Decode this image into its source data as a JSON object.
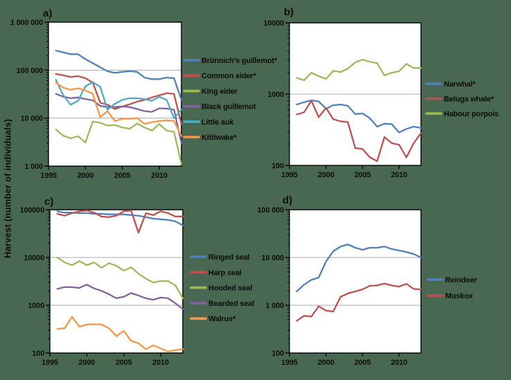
{
  "figure": {
    "y_axis_label": "Harvest (number of individuals)",
    "background_color": "#496851",
    "plot_background": "#FFFFFF",
    "grid_color": "#A8A8A8",
    "axis_color": "#000000"
  },
  "chart_data": [
    {
      "id": "a",
      "panel_label": "a)",
      "type": "line",
      "log_scale": true,
      "ylim": [
        1000,
        1000000
      ],
      "y_tick_labels": [
        "1 000 000",
        "100 000",
        "10 000",
        "1 000"
      ],
      "x_ticks": [
        1995,
        2000,
        2005,
        2010
      ],
      "x_tick_labels": [
        "1995",
        "2000",
        "2005",
        "2010"
      ],
      "x": [
        1996,
        1997,
        1998,
        1999,
        2000,
        2001,
        2002,
        2003,
        2004,
        2005,
        2006,
        2007,
        2008,
        2009,
        2010,
        2011,
        2012,
        2013
      ],
      "series": [
        {
          "name": "Brünnich's guillemot*",
          "color": "#4F81BD",
          "values": [
            255000,
            235000,
            215000,
            215000,
            170000,
            140000,
            115000,
            95000,
            88000,
            92000,
            95000,
            92000,
            70000,
            65000,
            65000,
            70000,
            68000,
            24000
          ]
        },
        {
          "name": "Common eider*",
          "color": "#C0504D",
          "values": [
            83000,
            78000,
            72000,
            75000,
            68000,
            55000,
            21000,
            19000,
            15500,
            17500,
            19500,
            22000,
            24000,
            27000,
            30000,
            33000,
            32000,
            7500
          ]
        },
        {
          "name": "King eider",
          "color": "#9BBB59",
          "values": [
            5800,
            4300,
            3800,
            4200,
            3100,
            8500,
            8000,
            7000,
            7200,
            6400,
            6000,
            7700,
            6400,
            5500,
            7500,
            5500,
            5200,
            1100
          ]
        },
        {
          "name": "Black guillemot",
          "color": "#8064A2",
          "values": [
            32000,
            28000,
            26000,
            27000,
            25000,
            23500,
            18000,
            17000,
            17000,
            17500,
            17000,
            15500,
            14000,
            13500,
            16000,
            15800,
            15000,
            3000
          ]
        },
        {
          "name": "Little auk",
          "color": "#4BACC6",
          "values": [
            63000,
            30000,
            19000,
            23000,
            46000,
            56000,
            45000,
            15000,
            20000,
            24000,
            26000,
            26000,
            25000,
            23000,
            28000,
            24000,
            10000,
            15000
          ]
        },
        {
          "name": "Kittiwake*",
          "color": "#F79646",
          "values": [
            55000,
            43000,
            39000,
            42000,
            38000,
            32000,
            10500,
            14000,
            8700,
            9700,
            9700,
            10000,
            7600,
            8200,
            8700,
            9000,
            8700,
            4200
          ]
        }
      ]
    },
    {
      "id": "b",
      "panel_label": "b)",
      "type": "line",
      "log_scale": true,
      "ylim": [
        100,
        10000
      ],
      "y_tick_labels": [
        "10000",
        "1000",
        "100"
      ],
      "x_ticks": [
        1995,
        2000,
        2005,
        2010
      ],
      "x_tick_labels": [
        "1995",
        "2000",
        "2005",
        "2010"
      ],
      "x": [
        1996,
        1997,
        1998,
        1999,
        2000,
        2001,
        2002,
        2003,
        2004,
        2005,
        2006,
        2007,
        2008,
        2009,
        2010,
        2011,
        2012,
        2013
      ],
      "series": [
        {
          "name": "Narwhal*",
          "color": "#4F81BD",
          "values": [
            715,
            770,
            820,
            790,
            625,
            700,
            715,
            685,
            525,
            535,
            460,
            350,
            385,
            380,
            290,
            325,
            350,
            335
          ]
        },
        {
          "name": "Beluga whale*",
          "color": "#C0504D",
          "values": [
            520,
            555,
            810,
            475,
            640,
            445,
            415,
            405,
            175,
            170,
            130,
            115,
            250,
            205,
            195,
            130,
            205,
            285
          ]
        },
        {
          "name": "Habour porpois",
          "color": "#9BBB59",
          "values": [
            1700,
            1560,
            2000,
            1790,
            1630,
            2130,
            2040,
            2280,
            2790,
            3050,
            2850,
            2720,
            1830,
            2000,
            2090,
            2660,
            2330,
            2330
          ]
        }
      ]
    },
    {
      "id": "c",
      "panel_label": "c)",
      "type": "line",
      "log_scale": true,
      "ylim": [
        100,
        100000
      ],
      "y_tick_labels": [
        "100000",
        "10000",
        "1000",
        "100"
      ],
      "x_ticks": [
        1995,
        2000,
        2005,
        2010
      ],
      "x_tick_labels": [
        "1995",
        "2000",
        "2005",
        "2010"
      ],
      "x": [
        1996,
        1997,
        1998,
        1999,
        2000,
        2001,
        2002,
        2003,
        2004,
        2005,
        2006,
        2007,
        2008,
        2009,
        2010,
        2011,
        2012,
        2013
      ],
      "series": [
        {
          "name": "Ringed seal",
          "color": "#4F81BD",
          "values": [
            93000,
            87000,
            87000,
            85000,
            85000,
            82000,
            82000,
            80000,
            80000,
            80000,
            77000,
            75000,
            70000,
            65000,
            63000,
            61000,
            57000,
            47000
          ]
        },
        {
          "name": "Harp seal",
          "color": "#C0504D",
          "values": [
            82000,
            75000,
            85000,
            93000,
            96000,
            87000,
            72000,
            70000,
            75000,
            93000,
            96000,
            33000,
            85000,
            77000,
            93000,
            85000,
            72000,
            72000
          ]
        },
        {
          "name": "Hooded seal",
          "color": "#9BBB59",
          "values": [
            10000,
            7900,
            6900,
            8400,
            6900,
            7900,
            6100,
            7600,
            6700,
            5300,
            6200,
            4600,
            3600,
            3000,
            3200,
            3200,
            2600,
            1400
          ]
        },
        {
          "name": "Bearded seal",
          "color": "#8064A2",
          "values": [
            2200,
            2400,
            2400,
            2300,
            2700,
            2250,
            2000,
            1700,
            1400,
            1500,
            1800,
            1600,
            1400,
            1300,
            1450,
            1400,
            1100,
            830
          ]
        },
        {
          "name": "Walrus*",
          "color": "#F79646",
          "values": [
            320,
            330,
            570,
            355,
            395,
            400,
            395,
            330,
            225,
            290,
            180,
            160,
            120,
            145,
            125,
            107,
            115,
            120
          ]
        }
      ]
    },
    {
      "id": "d",
      "panel_label": "d)",
      "type": "line",
      "log_scale": true,
      "ylim": [
        100,
        100000
      ],
      "y_tick_labels": [
        "100 000",
        "10 000",
        "1 000",
        "100"
      ],
      "x_ticks": [
        1995,
        2000,
        2005,
        2010
      ],
      "x_tick_labels": [
        "1995",
        "2000",
        "2005",
        "2010"
      ],
      "x": [
        1996,
        1997,
        1998,
        1999,
        2000,
        2001,
        2002,
        2003,
        2004,
        2005,
        2006,
        2007,
        2008,
        2009,
        2010,
        2011,
        2012,
        2013
      ],
      "series": [
        {
          "name": "Reindeer",
          "color": "#4F81BD",
          "values": [
            1950,
            2700,
            3400,
            3800,
            8200,
            13500,
            17000,
            18800,
            16000,
            14500,
            16000,
            16000,
            17000,
            15000,
            14000,
            13000,
            11800,
            10000
          ]
        },
        {
          "name": "Muskox",
          "color": "#C0504D",
          "values": [
            470,
            600,
            580,
            950,
            770,
            740,
            1500,
            1770,
            1950,
            2150,
            2550,
            2600,
            2850,
            2600,
            2450,
            2800,
            2200,
            2150
          ]
        }
      ]
    }
  ]
}
